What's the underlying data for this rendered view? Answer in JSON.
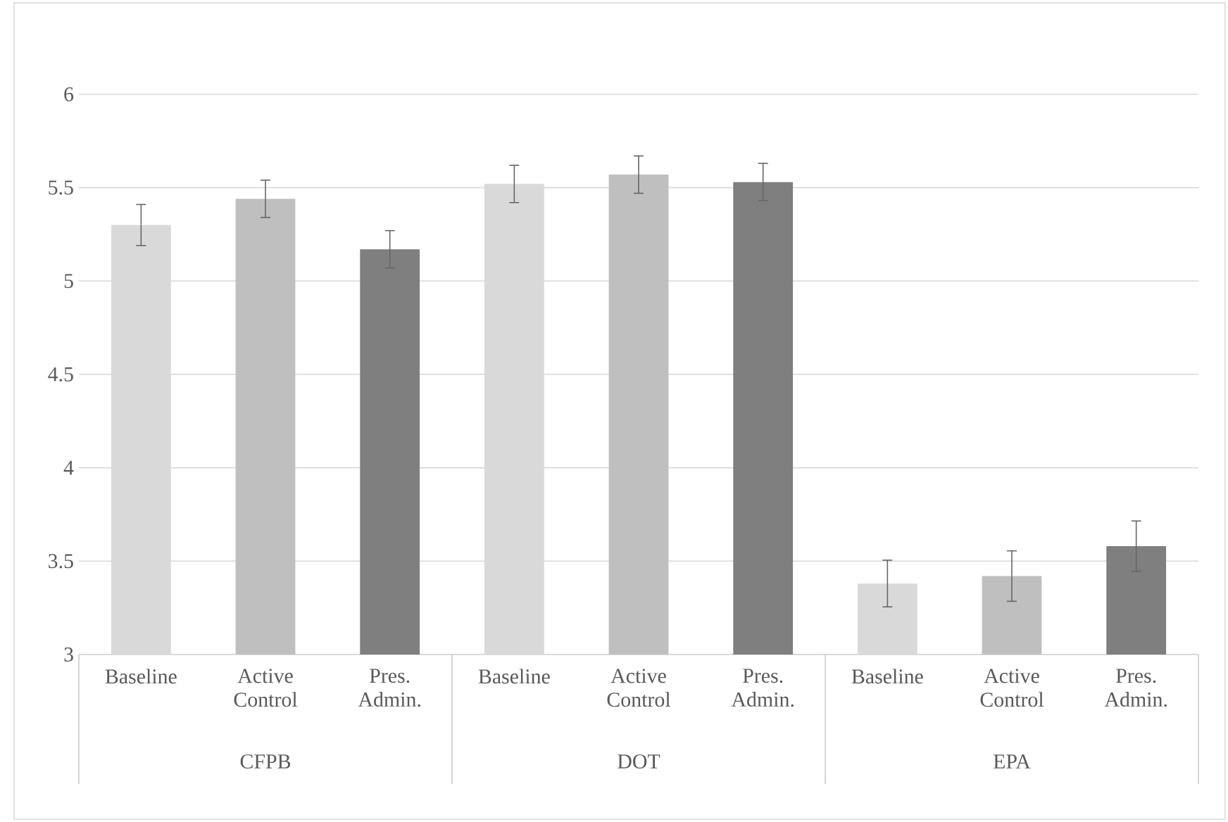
{
  "chart_data": {
    "type": "bar",
    "categories": [
      "CFPB",
      "DOT",
      "EPA"
    ],
    "series": [
      {
        "name": "Baseline",
        "color": "#d9d9d9",
        "values": [
          5.3,
          5.52,
          3.38
        ],
        "errors": [
          0.11,
          0.1,
          0.125
        ]
      },
      {
        "name": "Active Control",
        "color": "#bfbfbf",
        "values": [
          5.44,
          5.57,
          3.42
        ],
        "errors": [
          0.1,
          0.1,
          0.135
        ]
      },
      {
        "name": "Pres. Admin.",
        "color": "#7f7f7f",
        "values": [
          5.17,
          5.53,
          3.58
        ],
        "errors": [
          0.1,
          0.1,
          0.135
        ]
      }
    ],
    "ylim": [
      3,
      6
    ],
    "yticks": [
      3,
      3.5,
      4,
      4.5,
      5,
      5.5,
      6
    ],
    "grid": "y",
    "legend": false
  }
}
